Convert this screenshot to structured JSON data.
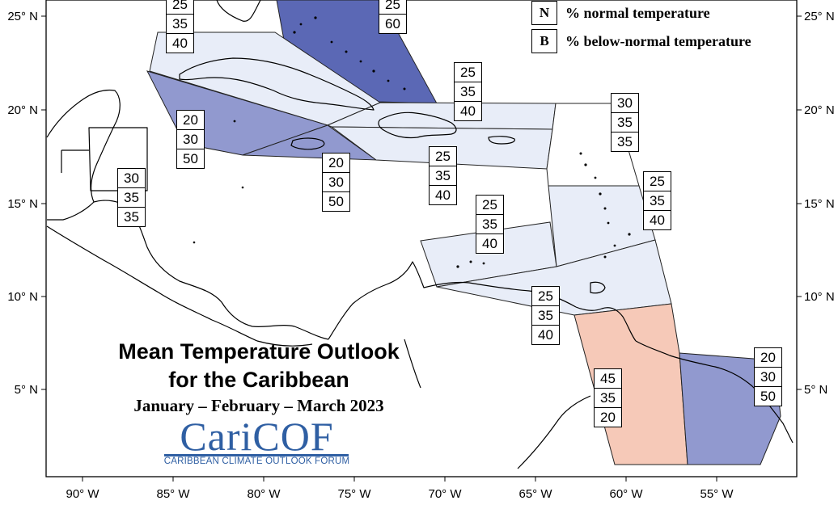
{
  "title": {
    "line1": "Mean Temperature Outlook",
    "line2": "for the Caribbean",
    "period": "January – February – March 2023"
  },
  "logo": {
    "name": "CariCOF",
    "subtitle": "CARIBBEAN CLIMATE OUTLOOK FORUM"
  },
  "legend": [
    {
      "key": "N",
      "text": "% normal temperature"
    },
    {
      "key": "B",
      "text": "% below-normal temperature"
    }
  ],
  "axes": {
    "x": [
      "90° W",
      "85° W",
      "80° W",
      "75° W",
      "70° W",
      "65° W",
      "60° W",
      "55° W"
    ],
    "y_left": [
      "25° N",
      "20° N",
      "15° N",
      "10° N",
      "5° N"
    ],
    "y_right": [
      "25° N",
      "20° N",
      "15° N",
      "10° N",
      "5° N"
    ]
  },
  "colors": {
    "light": "#e8edf8",
    "medium": "#9199cf",
    "dark": "#5b68b5",
    "above": "#f6c9b8"
  },
  "probabilities": [
    {
      "id": "cuba-west",
      "a": "25",
      "n": "35",
      "b": "40"
    },
    {
      "id": "bahamas",
      "a": "25",
      "n": "60",
      "b": ""
    },
    {
      "id": "cuba-south",
      "a": "20",
      "n": "30",
      "b": "50"
    },
    {
      "id": "jamaica",
      "a": "20",
      "n": "30",
      "b": "50"
    },
    {
      "id": "hispaniola",
      "a": "25",
      "n": "35",
      "b": "40"
    },
    {
      "id": "hispaniola-south",
      "a": "25",
      "n": "35",
      "b": "40"
    },
    {
      "id": "belize",
      "a": "30",
      "n": "35",
      "b": "35"
    },
    {
      "id": "leeward-north",
      "a": "30",
      "n": "35",
      "b": "35"
    },
    {
      "id": "leeward-south",
      "a": "25",
      "n": "35",
      "b": "40"
    },
    {
      "id": "abc-islands",
      "a": "25",
      "n": "35",
      "b": "40"
    },
    {
      "id": "trinidad",
      "a": "25",
      "n": "35",
      "b": "40"
    },
    {
      "id": "guyana",
      "a": "45",
      "n": "35",
      "b": "20"
    },
    {
      "id": "suriname",
      "a": "20",
      "n": "30",
      "b": "50"
    }
  ]
}
